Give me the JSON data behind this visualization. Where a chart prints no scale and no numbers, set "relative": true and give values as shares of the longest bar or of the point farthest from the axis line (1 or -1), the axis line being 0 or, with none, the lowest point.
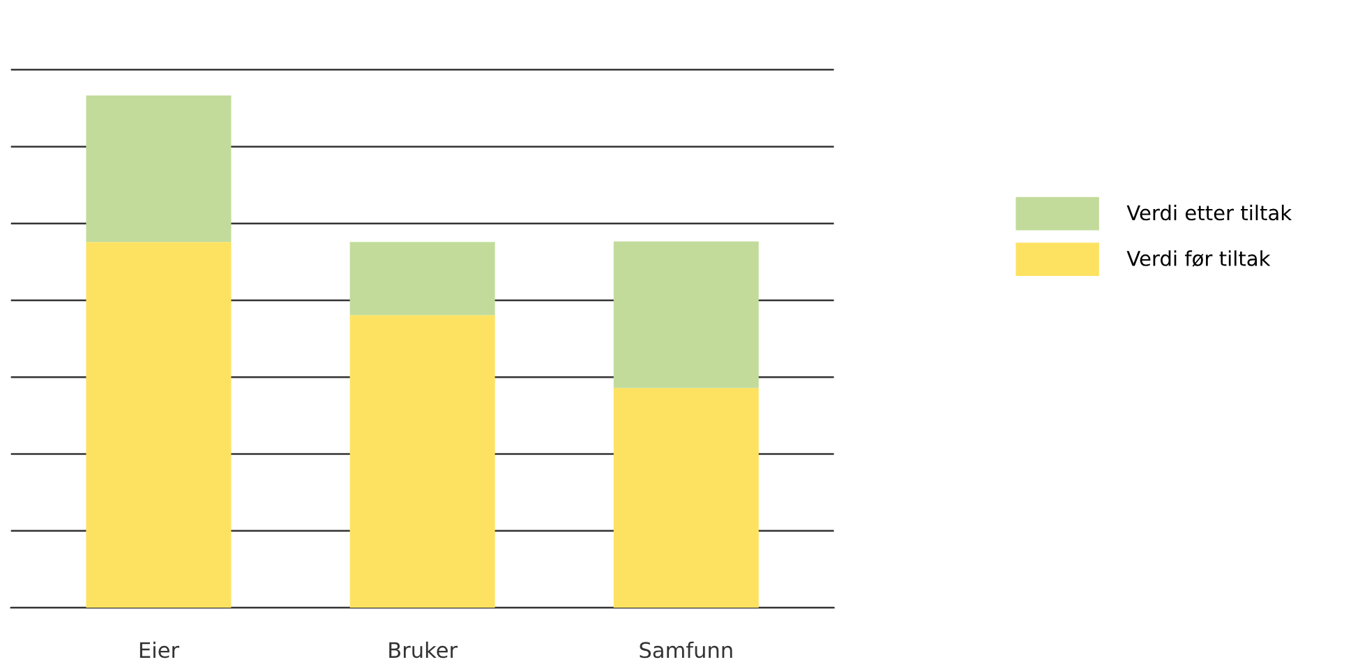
{
  "chart_data": {
    "type": "bar",
    "relative": true,
    "stacked": true,
    "grid": "y",
    "legend": "right",
    "tick_labels": "x",
    "categories": [
      "Eier",
      "Bruker",
      "Samfunn"
    ],
    "series": [
      {
        "name": "Verdi før tiltak",
        "color": "#fde262",
        "values": [
          0.714,
          0.571,
          0.429
        ]
      },
      {
        "name": "Verdi etter tiltak",
        "color": "#c2db9b",
        "values": [
          0.286,
          0.143,
          0.286
        ]
      }
    ]
  }
}
